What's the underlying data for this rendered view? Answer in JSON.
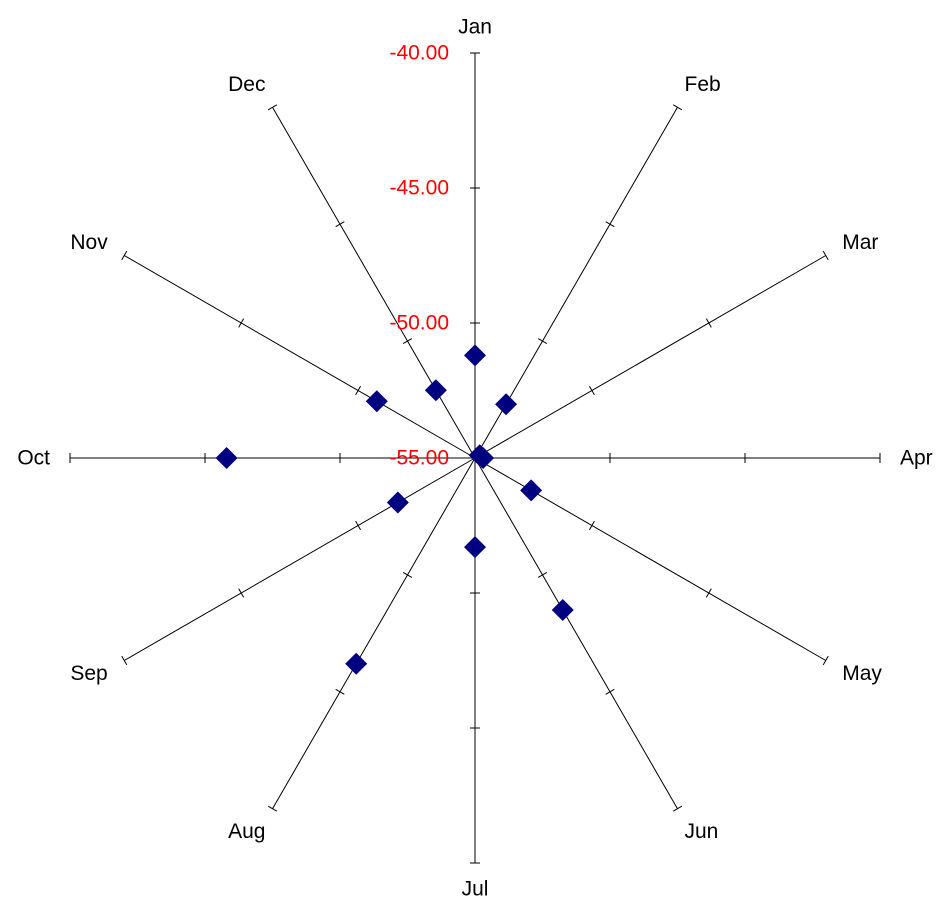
{
  "chart_data": {
    "type": "radar",
    "categories": [
      "Jan",
      "Feb",
      "Mar",
      "Apr",
      "May",
      "Jun",
      "Jul",
      "Aug",
      "Sep",
      "Oct",
      "Nov",
      "Dec"
    ],
    "series": [
      {
        "values": [
          -51.2,
          -52.7,
          -54.8,
          -54.7,
          -52.6,
          -48.5,
          -51.7,
          -46.2,
          -51.7,
          -45.8,
          -50.8,
          -52.1
        ]
      }
    ],
    "range": [
      -55,
      -40
    ],
    "scale_ticks": [
      "-40.00",
      "-45.00",
      "-50.00",
      "-55.00"
    ],
    "colors": {
      "marker": "#000080",
      "scale_label": "#ff0000",
      "axis": "#000000"
    },
    "marker": "diamond"
  }
}
